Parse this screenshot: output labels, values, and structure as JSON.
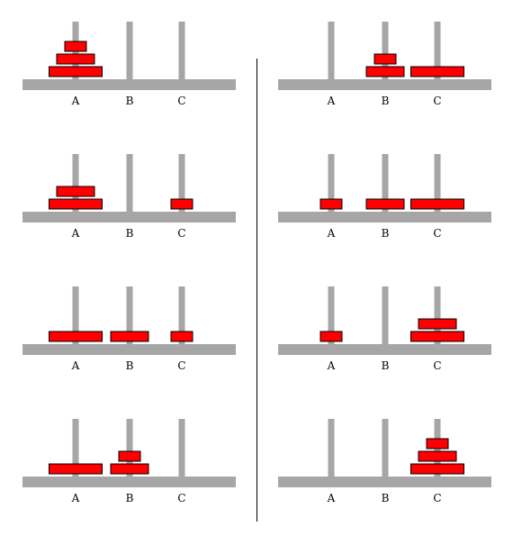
{
  "peg_labels": [
    "A",
    "B",
    "C"
  ],
  "colors": {
    "base": "#a6a6a6",
    "peg": "#a6a6a6",
    "disk": "#ff0000",
    "disk_border": "#000000",
    "divider": "#000000"
  },
  "disk_sizes": [
    "small",
    "medium",
    "large"
  ],
  "states": [
    {
      "step": 0,
      "A": [
        "large",
        "medium",
        "small"
      ],
      "B": [],
      "C": []
    },
    {
      "step": 1,
      "A": [
        "large",
        "medium"
      ],
      "B": [],
      "C": [
        "small"
      ]
    },
    {
      "step": 2,
      "A": [
        "large"
      ],
      "B": [
        "medium"
      ],
      "C": [
        "small"
      ]
    },
    {
      "step": 3,
      "A": [
        "large"
      ],
      "B": [
        "medium",
        "small"
      ],
      "C": []
    },
    {
      "step": 4,
      "A": [],
      "B": [
        "medium",
        "small"
      ],
      "C": [
        "large"
      ]
    },
    {
      "step": 5,
      "A": [
        "small"
      ],
      "B": [
        "medium"
      ],
      "C": [
        "large"
      ]
    },
    {
      "step": 6,
      "A": [
        "small"
      ],
      "B": [],
      "C": [
        "large",
        "medium"
      ]
    },
    {
      "step": 7,
      "A": [],
      "B": [],
      "C": [
        "large",
        "medium",
        "small"
      ]
    }
  ]
}
